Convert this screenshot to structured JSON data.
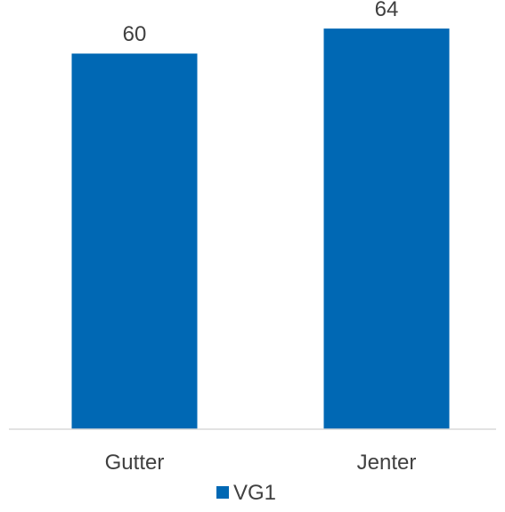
{
  "chart_data": {
    "type": "bar",
    "categories": [
      "Gutter",
      "Jenter"
    ],
    "series": [
      {
        "name": "VG1",
        "values": [
          60,
          64
        ],
        "color": "#0068B4"
      }
    ],
    "data_labels": [
      "60",
      "64"
    ],
    "ylim": [
      0,
      66
    ],
    "grid": false,
    "legend_position": "bottom",
    "axis_color": "#D9D9D9",
    "text_color": "#404040"
  }
}
